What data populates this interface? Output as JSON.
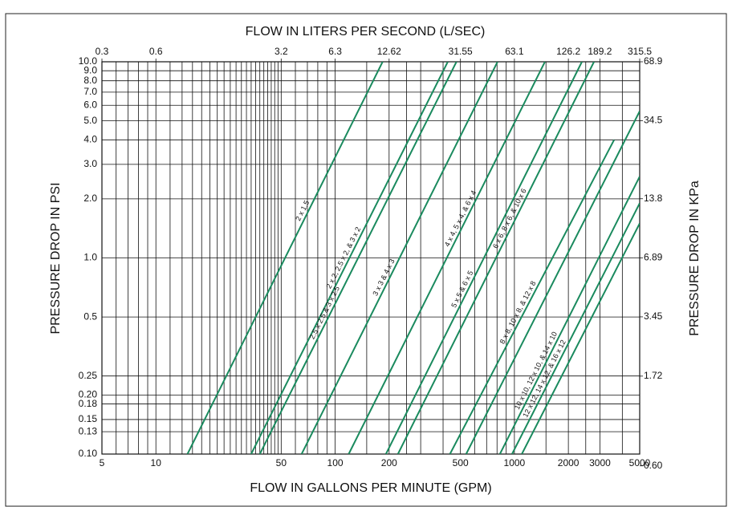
{
  "chart_data": {
    "type": "line",
    "x_label": "FLOW IN GALLONS PER MINUTE (GPM)",
    "x2_label": "FLOW IN LITERS PER SECOND (L/SEC)",
    "y_label": "PRESSURE DROP IN PSI",
    "y2_label": "PRESSURE DROP IN KPa",
    "log_x": true,
    "log_y": true,
    "grid": true,
    "xlim": [
      5,
      5000
    ],
    "xticks": [
      5,
      10,
      50,
      100,
      200,
      500,
      1000,
      2000,
      3000,
      5000
    ],
    "xminor": [
      6,
      7,
      8,
      9,
      12,
      14,
      16,
      18,
      20,
      22,
      24,
      26,
      28,
      30,
      32,
      34,
      36,
      38,
      40,
      42,
      44,
      46,
      48,
      60,
      70,
      80,
      90,
      150,
      250,
      300,
      400,
      600,
      700,
      800,
      900,
      1500,
      2500,
      4000
    ],
    "x2lim": [
      0.3155,
      315.5
    ],
    "x2ticks": [
      {
        "value": 0.3155,
        "label": "0.3"
      },
      {
        "value": 0.631,
        "label": "0.6"
      },
      {
        "value": 3.155,
        "label": "3.2"
      },
      {
        "value": 6.31,
        "label": "6.3"
      },
      12.62,
      31.55,
      63.1,
      126.2,
      189.2,
      315.5
    ],
    "ylim": [
      0.1,
      10
    ],
    "yticks": [
      {
        "value": 0.1,
        "label": "0.10"
      },
      0.13,
      0.15,
      0.18,
      {
        "value": 0.2,
        "label": "0.20"
      },
      0.25,
      0.5,
      {
        "value": 1,
        "label": "1.0"
      },
      {
        "value": 2,
        "label": "2.0"
      },
      {
        "value": 3,
        "label": "3.0"
      },
      {
        "value": 4,
        "label": "4.0"
      },
      {
        "value": 5,
        "label": "5.0"
      },
      {
        "value": 6,
        "label": "6.0"
      },
      {
        "value": 7,
        "label": "7.0"
      },
      {
        "value": 8,
        "label": "8.0"
      },
      {
        "value": 9,
        "label": "9.0"
      },
      {
        "value": 10,
        "label": "10.0"
      }
    ],
    "y2lim": [
      0.689,
      68.9
    ],
    "y2ticks": [
      {
        "value": 0.6,
        "label": "0.60"
      },
      1.72,
      3.45,
      6.89,
      13.8,
      34.5,
      68.9
    ],
    "series": [
      {
        "name": "2 x 1.5",
        "color": "#1a8a5e",
        "x": [
          15,
          184
        ],
        "values": [
          0.1,
          10
        ]
      },
      {
        "name": "2 x 2, 2.5 x 2, & 3 x 2",
        "color": "#1a8a5e",
        "x": [
          34,
          425
        ],
        "values": [
          0.1,
          10
        ]
      },
      {
        "name": "2.5 x 2.5 & 3 x 2.5",
        "color": "#1a8a5e",
        "x": [
          38,
          475
        ],
        "values": [
          0.1,
          10
        ]
      },
      {
        "name": "3 x 3 & 4 x 3",
        "color": "#1a8a5e",
        "x": [
          65,
          805
        ],
        "values": [
          0.1,
          10
        ]
      },
      {
        "name": "4 x 4, 5 x 4, & 6 x 4",
        "color": "#1a8a5e",
        "x": [
          119,
          1480
        ],
        "values": [
          0.1,
          10
        ]
      },
      {
        "name": "5 x 5 & 6 x 5",
        "color": "#1a8a5e",
        "x": [
          192,
          2380
        ],
        "values": [
          0.1,
          10
        ]
      },
      {
        "name": "6 x 6, 8 x 6, & 10 x 6",
        "color": "#1a8a5e",
        "x": [
          224,
          2780
        ],
        "values": [
          0.1,
          10
        ]
      },
      {
        "name": "8 x 8, 10 x 8, & 12 x 8",
        "color": "#1a8a5e",
        "x": [
          437,
          3600
        ],
        "values": [
          0.1,
          4
        ]
      },
      {
        "color": "#1a8a5e",
        "x": [
          538,
          5000
        ],
        "values": [
          0.1,
          5.6
        ]
      },
      {
        "name": "10 x 10, 12 x 10, & 14 x 10",
        "color": "#1a8a5e",
        "x": [
          830,
          5000
        ],
        "values": [
          0.1,
          2.6
        ]
      },
      {
        "name": "12 x 12, 14 x 12, & 16 x 12",
        "color": "#1a8a5e",
        "x": [
          970,
          5000
        ],
        "values": [
          0.1,
          1.9
        ]
      },
      {
        "color": "#1a8a5e",
        "x": [
          1100,
          5000
        ],
        "values": [
          0.1,
          1.5
        ]
      }
    ]
  }
}
